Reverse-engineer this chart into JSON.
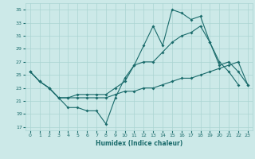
{
  "xlabel": "Humidex (Indice chaleur)",
  "x_ticks": [
    0,
    1,
    2,
    3,
    4,
    5,
    6,
    7,
    8,
    9,
    10,
    11,
    12,
    13,
    14,
    15,
    16,
    17,
    18,
    19,
    20,
    21,
    22,
    23
  ],
  "xlim": [
    -0.5,
    23.5
  ],
  "ylim": [
    16.5,
    36
  ],
  "y_ticks": [
    17,
    19,
    21,
    23,
    25,
    27,
    29,
    31,
    33,
    35
  ],
  "bg_color": "#cce9e8",
  "grid_color": "#aad4d2",
  "line_color": "#1a6b6b",
  "series1_y": [
    25.5,
    24.0,
    23.0,
    21.5,
    20.0,
    20.0,
    19.5,
    19.5,
    17.5,
    21.5,
    24.5,
    26.5,
    29.5,
    32.5,
    29.5,
    35.0,
    34.5,
    33.5,
    34.0,
    30.0,
    27.0,
    25.5,
    23.5,
    null
  ],
  "series2_y": [
    25.5,
    24.0,
    23.0,
    21.5,
    21.5,
    21.5,
    21.5,
    21.5,
    21.5,
    22.0,
    22.5,
    22.5,
    23.0,
    23.0,
    23.5,
    24.0,
    24.5,
    24.5,
    25.0,
    25.5,
    26.0,
    26.5,
    27.0,
    23.5
  ],
  "series3_y": [
    25.5,
    24.0,
    23.0,
    21.5,
    21.5,
    22.0,
    22.0,
    22.0,
    22.0,
    23.0,
    24.0,
    26.5,
    27.0,
    27.0,
    28.5,
    30.0,
    31.0,
    31.5,
    32.5,
    30.0,
    26.5,
    27.0,
    25.5,
    23.5
  ]
}
